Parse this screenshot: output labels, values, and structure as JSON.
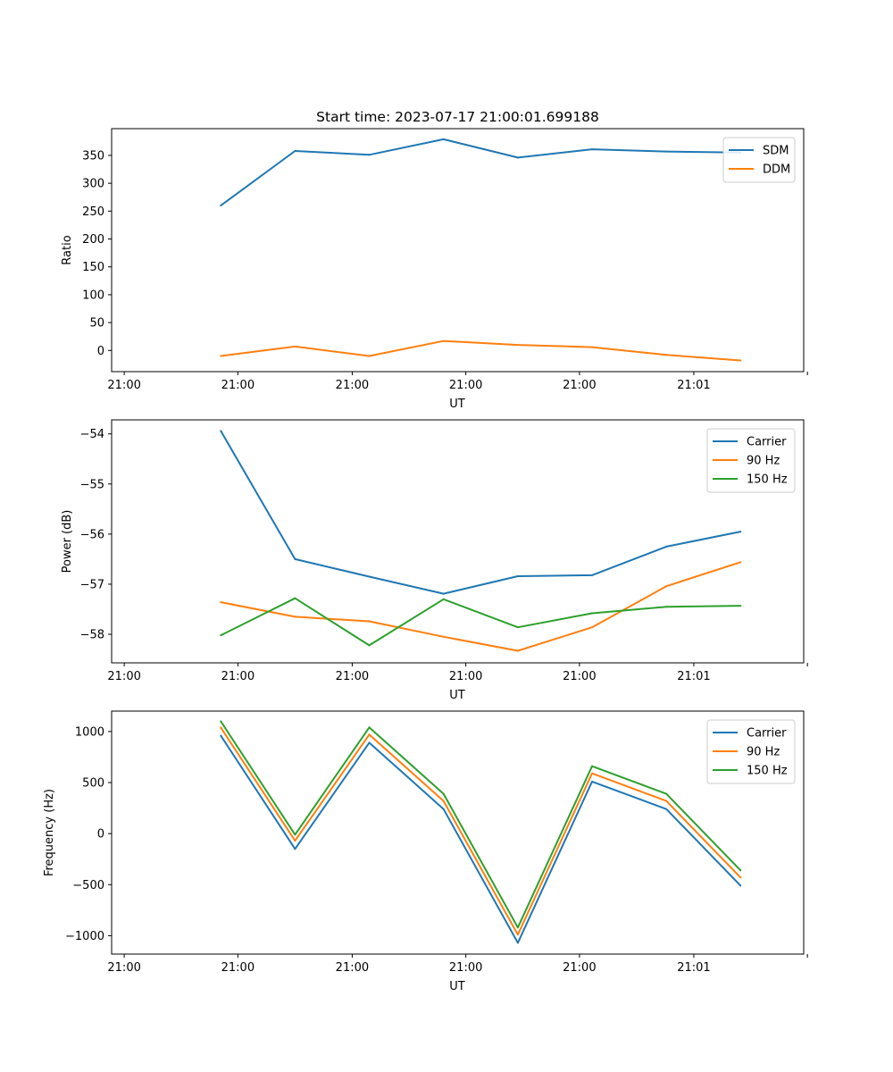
{
  "figure_title": "Start time: 2023-07-17 21:00:01.699188",
  "colors": {
    "c0": "#1f77b4",
    "c1": "#ff7f0e",
    "c2": "#2ca02c"
  },
  "x_tick_labels": [
    "21:00",
    "21:00",
    "21:00",
    "21:00",
    "21:00",
    "21:01"
  ],
  "chart_data": [
    {
      "type": "line",
      "title": "Start time: 2023-07-17 21:00:01.699188",
      "xlabel": "UT",
      "ylabel": "Ratio",
      "x": [
        1,
        2,
        3,
        4,
        5,
        6,
        7,
        8
      ],
      "xlim": [
        -0.47,
        8.85
      ],
      "ylim": [
        -38,
        398
      ],
      "yticks": [
        0,
        50,
        100,
        150,
        200,
        250,
        300,
        350
      ],
      "ytick_labels": [
        "0",
        "50",
        "100",
        "150",
        "200",
        "250",
        "300",
        "350"
      ],
      "xticks": [
        -0.3,
        1.23,
        2.77,
        4.3,
        5.83,
        7.37,
        8.9
      ],
      "legend": "top-right",
      "series": [
        {
          "name": "SDM",
          "color": "#1f77b4",
          "values": [
            260,
            358,
            351,
            379,
            346,
            361,
            357,
            355
          ]
        },
        {
          "name": "DDM",
          "color": "#ff7f0e",
          "values": [
            -10,
            7,
            -10,
            17,
            10,
            6,
            -8,
            -18
          ]
        }
      ]
    },
    {
      "type": "line",
      "xlabel": "UT",
      "ylabel": "Power (dB)",
      "x": [
        1,
        2,
        3,
        4,
        5,
        6,
        7,
        8
      ],
      "xlim": [
        -0.47,
        8.85
      ],
      "ylim": [
        -58.57,
        -53.72
      ],
      "yticks": [
        -58,
        -57,
        -56,
        -55,
        -54
      ],
      "ytick_labels": [
        "−58",
        "−57",
        "−56",
        "−55",
        "−54"
      ],
      "xticks": [
        -0.3,
        1.23,
        2.77,
        4.3,
        5.83,
        7.37,
        8.9
      ],
      "legend": "top-right",
      "series": [
        {
          "name": "Carrier",
          "color": "#1f77b4",
          "values": [
            -53.94,
            -56.5,
            -56.85,
            -57.19,
            -56.84,
            -56.82,
            -56.25,
            -55.95
          ]
        },
        {
          "name": "90 Hz",
          "color": "#ff7f0e",
          "values": [
            -57.36,
            -57.65,
            -57.74,
            -58.05,
            -58.33,
            -57.86,
            -57.04,
            -56.56
          ]
        },
        {
          "name": "150 Hz",
          "color": "#2ca02c",
          "values": [
            -58.02,
            -57.28,
            -58.22,
            -57.3,
            -57.86,
            -57.58,
            -57.45,
            -57.43
          ]
        }
      ]
    },
    {
      "type": "line",
      "xlabel": "UT",
      "ylabel": "Frequency (Hz)",
      "x": [
        1,
        2,
        3,
        4,
        5,
        6,
        7,
        8
      ],
      "xlim": [
        -0.47,
        8.85
      ],
      "ylim": [
        -1180,
        1200
      ],
      "yticks": [
        -1000,
        -500,
        0,
        500,
        1000
      ],
      "ytick_labels": [
        "−1000",
        "−500",
        "0",
        "500",
        "1000"
      ],
      "xticks": [
        -0.3,
        1.23,
        2.77,
        4.3,
        5.83,
        7.37,
        8.9
      ],
      "legend": "top-right",
      "series": [
        {
          "name": "Carrier",
          "color": "#1f77b4",
          "values": [
            960,
            -150,
            890,
            240,
            -1070,
            510,
            240,
            -510
          ]
        },
        {
          "name": "90 Hz",
          "color": "#ff7f0e",
          "values": [
            1040,
            -70,
            970,
            320,
            -990,
            590,
            320,
            -430
          ]
        },
        {
          "name": "150 Hz",
          "color": "#2ca02c",
          "values": [
            1100,
            -10,
            1040,
            390,
            -920,
            660,
            390,
            -360
          ]
        }
      ]
    }
  ]
}
